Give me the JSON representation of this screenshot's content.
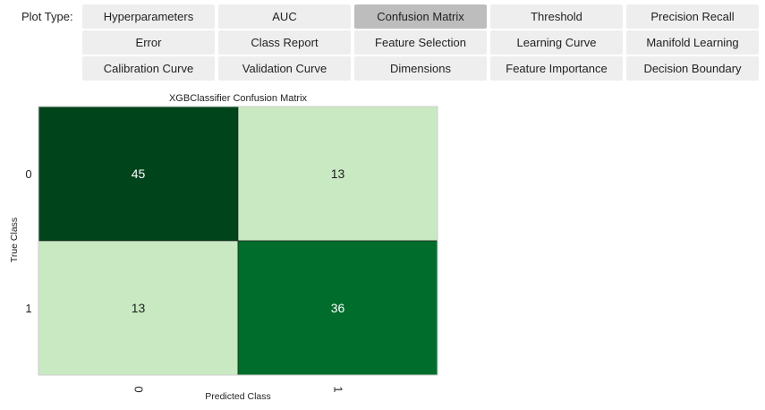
{
  "toolbar": {
    "label": "Plot Type:",
    "buttons": [
      {
        "label": "Hyperparameters",
        "selected": false
      },
      {
        "label": "AUC",
        "selected": false
      },
      {
        "label": "Confusion Matrix",
        "selected": true
      },
      {
        "label": "Threshold",
        "selected": false
      },
      {
        "label": "Precision Recall",
        "selected": false
      },
      {
        "label": "Error",
        "selected": false
      },
      {
        "label": "Class Report",
        "selected": false
      },
      {
        "label": "Feature Selection",
        "selected": false
      },
      {
        "label": "Learning Curve",
        "selected": false
      },
      {
        "label": "Manifold Learning",
        "selected": false
      },
      {
        "label": "Calibration Curve",
        "selected": false
      },
      {
        "label": "Validation Curve",
        "selected": false
      },
      {
        "label": "Dimensions",
        "selected": false
      },
      {
        "label": "Feature Importance",
        "selected": false
      },
      {
        "label": "Decision Boundary",
        "selected": false
      }
    ]
  },
  "chart_data": {
    "type": "heatmap",
    "title": "XGBClassifier Confusion Matrix",
    "xlabel": "Predicted Class",
    "ylabel": "True Class",
    "x_categories": [
      "0",
      "1"
    ],
    "y_categories": [
      "0",
      "1"
    ],
    "cells": [
      [
        45,
        13
      ],
      [
        13,
        36
      ]
    ],
    "colors": [
      [
        "#00441b",
        "#c8e9c1"
      ],
      [
        "#c8e9c1",
        "#006d2c"
      ]
    ],
    "text_colors": [
      [
        "#ffffff",
        "#1f1f1f"
      ],
      [
        "#1f1f1f",
        "#ffffff"
      ]
    ]
  }
}
